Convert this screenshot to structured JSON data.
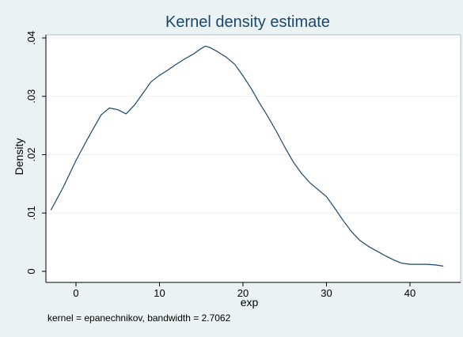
{
  "chart_data": {
    "type": "line",
    "title": "Kernel density estimate",
    "xlabel": "exp",
    "ylabel": "Density",
    "note": "kernel = epanechnikov, bandwidth = 2.7062",
    "xlim": [
      -3,
      44
    ],
    "ylim": [
      0,
      0.04
    ],
    "x_ticks": [
      0,
      10,
      20,
      30,
      40
    ],
    "y_ticks": [
      0,
      0.01,
      0.02,
      0.03,
      0.04
    ],
    "y_tick_labels": [
      "0",
      ".01",
      ".02",
      ".03",
      ".04"
    ],
    "grid": true,
    "series": [
      {
        "color": "#1a476f",
        "x": [
          -3,
          -1.5,
          0,
          1.5,
          3,
          4,
          5,
          6,
          7,
          8,
          9,
          10,
          11,
          12,
          13,
          14,
          15,
          15.5,
          16,
          17,
          18,
          19,
          20,
          21,
          22,
          23,
          24,
          25,
          26,
          27,
          28,
          29,
          30,
          31,
          32,
          33,
          34,
          35,
          36,
          37,
          38,
          39,
          40,
          41,
          42,
          43,
          44
        ],
        "y": [
          0.0105,
          0.0145,
          0.019,
          0.023,
          0.0268,
          0.028,
          0.0277,
          0.027,
          0.0285,
          0.0305,
          0.0325,
          0.0336,
          0.0345,
          0.0355,
          0.0364,
          0.0372,
          0.0382,
          0.0386,
          0.0384,
          0.0376,
          0.0367,
          0.0355,
          0.0335,
          0.0313,
          0.0288,
          0.0265,
          0.024,
          0.0213,
          0.0188,
          0.0168,
          0.0152,
          0.014,
          0.0128,
          0.0108,
          0.0087,
          0.0068,
          0.0053,
          0.0043,
          0.0035,
          0.0027,
          0.002,
          0.0014,
          0.0012,
          0.0012,
          0.0012,
          0.0011,
          0.0009
        ]
      }
    ]
  }
}
